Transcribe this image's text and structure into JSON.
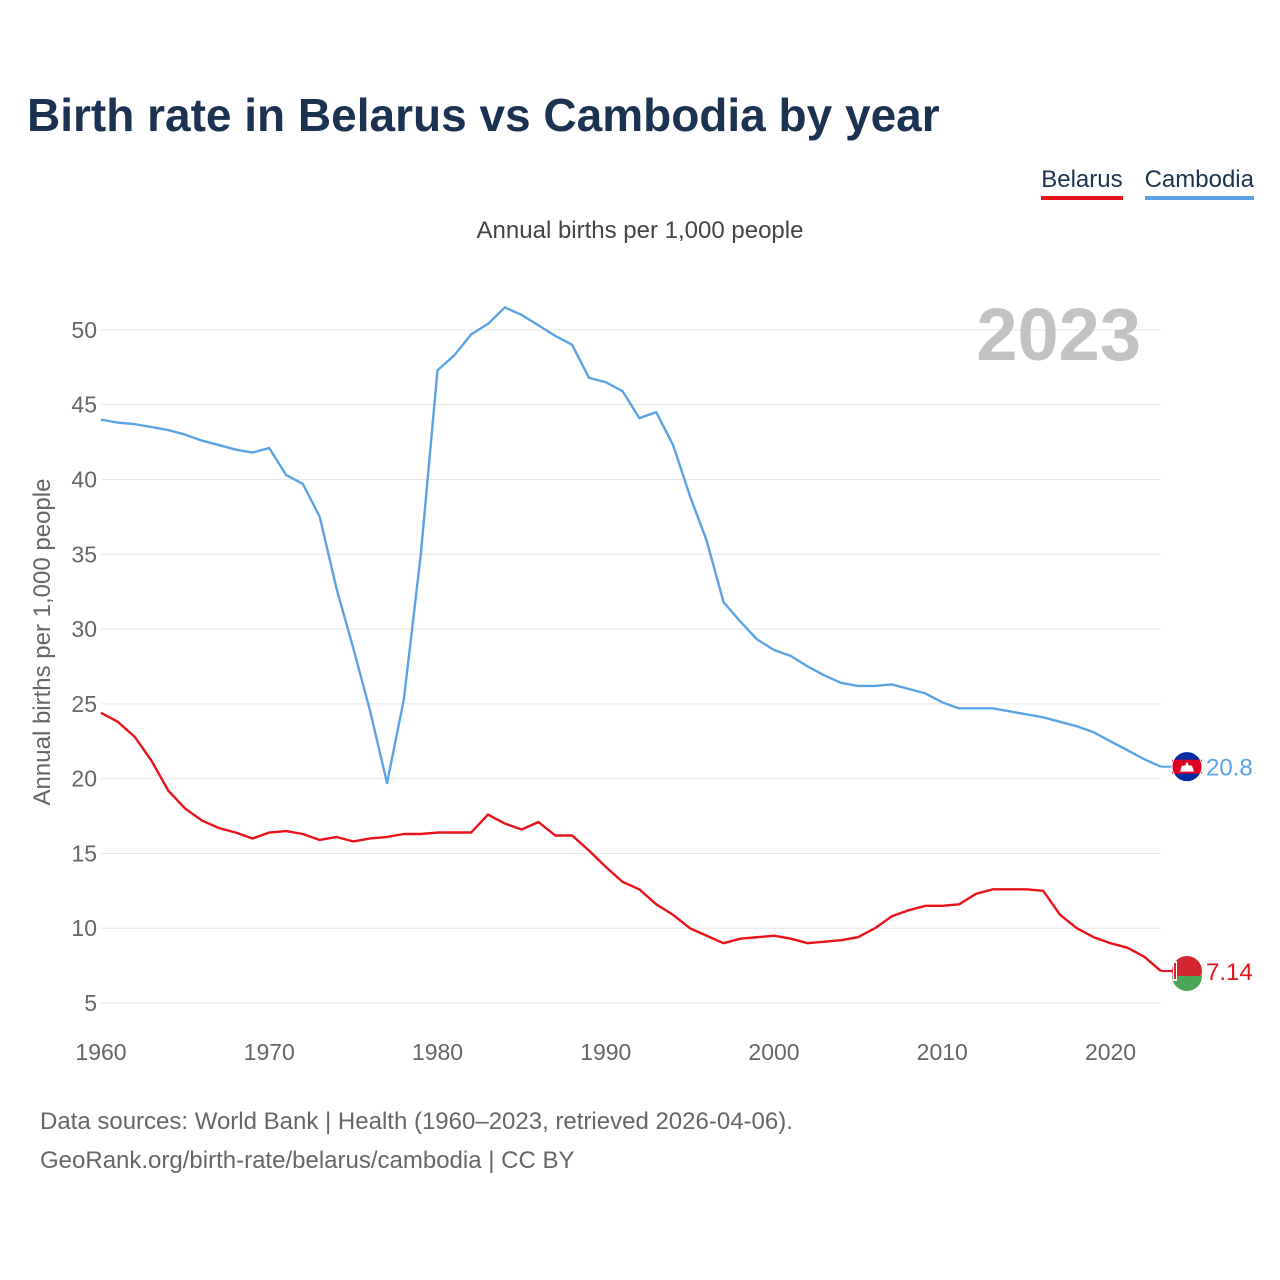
{
  "header": {
    "title": "Birth rate in Belarus vs Cambodia by year",
    "subtitle": "Annual births per 1,000 people"
  },
  "legend": [
    {
      "label": "Belarus",
      "color": "#e8121b"
    },
    {
      "label": "Cambodia",
      "color": "#5ba3e4"
    }
  ],
  "footer": {
    "line1": "Data sources: World Bank | Health (1960–2023, retrieved 2026-04-06).",
    "line2": "GeoRank.org/birth-rate/belarus/cambodia | CC BY"
  },
  "chart_data": {
    "type": "line",
    "title": "Birth rate in Belarus vs Cambodia by year",
    "subtitle": "Annual births per 1,000 people",
    "xlabel": "",
    "ylabel": "Annual births per 1,000 people",
    "year_label": "2023",
    "xlim": [
      1960,
      2023
    ],
    "ylim": [
      4,
      53
    ],
    "xticks": [
      1960,
      1970,
      1980,
      1990,
      2000,
      2010,
      2020
    ],
    "yticks": [
      5,
      10,
      15,
      20,
      25,
      30,
      35,
      40,
      45,
      50
    ],
    "grid": true,
    "legend_position": "top-right",
    "x": [
      1960,
      1961,
      1962,
      1963,
      1964,
      1965,
      1966,
      1967,
      1968,
      1969,
      1970,
      1971,
      1972,
      1973,
      1974,
      1975,
      1976,
      1977,
      1978,
      1979,
      1980,
      1981,
      1982,
      1983,
      1984,
      1985,
      1986,
      1987,
      1988,
      1989,
      1990,
      1991,
      1992,
      1993,
      1994,
      1995,
      1996,
      1997,
      1998,
      1999,
      2000,
      2001,
      2002,
      2003,
      2004,
      2005,
      2006,
      2007,
      2008,
      2009,
      2010,
      2011,
      2012,
      2013,
      2014,
      2015,
      2016,
      2017,
      2018,
      2019,
      2020,
      2021,
      2022,
      2023
    ],
    "series": [
      {
        "name": "Belarus",
        "color": "#e8121b",
        "end_label": "7.14",
        "values": [
          24.4,
          23.8,
          22.8,
          21.2,
          19.2,
          18.0,
          17.2,
          16.7,
          16.4,
          16.0,
          16.4,
          16.5,
          16.3,
          15.9,
          16.1,
          15.8,
          16.0,
          16.1,
          16.3,
          16.3,
          16.4,
          16.4,
          16.4,
          17.6,
          17.0,
          16.6,
          17.1,
          16.2,
          16.2,
          15.2,
          14.1,
          13.1,
          12.6,
          11.6,
          10.9,
          10.0,
          9.5,
          9.0,
          9.3,
          9.4,
          9.5,
          9.3,
          9.0,
          9.1,
          9.2,
          9.4,
          10.0,
          10.8,
          11.2,
          11.5,
          11.5,
          11.6,
          12.3,
          12.6,
          12.6,
          12.6,
          12.5,
          10.9,
          10.0,
          9.4,
          9.0,
          8.7,
          8.1,
          7.14
        ]
      },
      {
        "name": "Cambodia",
        "color": "#5ba3e4",
        "end_label": "20.8",
        "values": [
          44.0,
          43.8,
          43.7,
          43.5,
          43.3,
          43.0,
          42.6,
          42.3,
          42.0,
          41.8,
          42.1,
          40.3,
          39.7,
          37.5,
          32.7,
          28.7,
          24.5,
          19.7,
          25.3,
          34.9,
          47.3,
          48.3,
          49.7,
          50.4,
          51.5,
          51.0,
          50.3,
          49.6,
          49.0,
          46.8,
          46.5,
          45.9,
          44.1,
          44.5,
          42.3,
          38.9,
          35.9,
          31.8,
          30.5,
          29.3,
          28.6,
          28.2,
          27.5,
          26.9,
          26.4,
          26.2,
          26.2,
          26.3,
          26.0,
          25.7,
          25.1,
          24.7,
          24.7,
          24.7,
          24.5,
          24.3,
          24.1,
          23.8,
          23.5,
          23.1,
          22.5,
          21.9,
          21.3,
          20.8
        ]
      }
    ]
  }
}
